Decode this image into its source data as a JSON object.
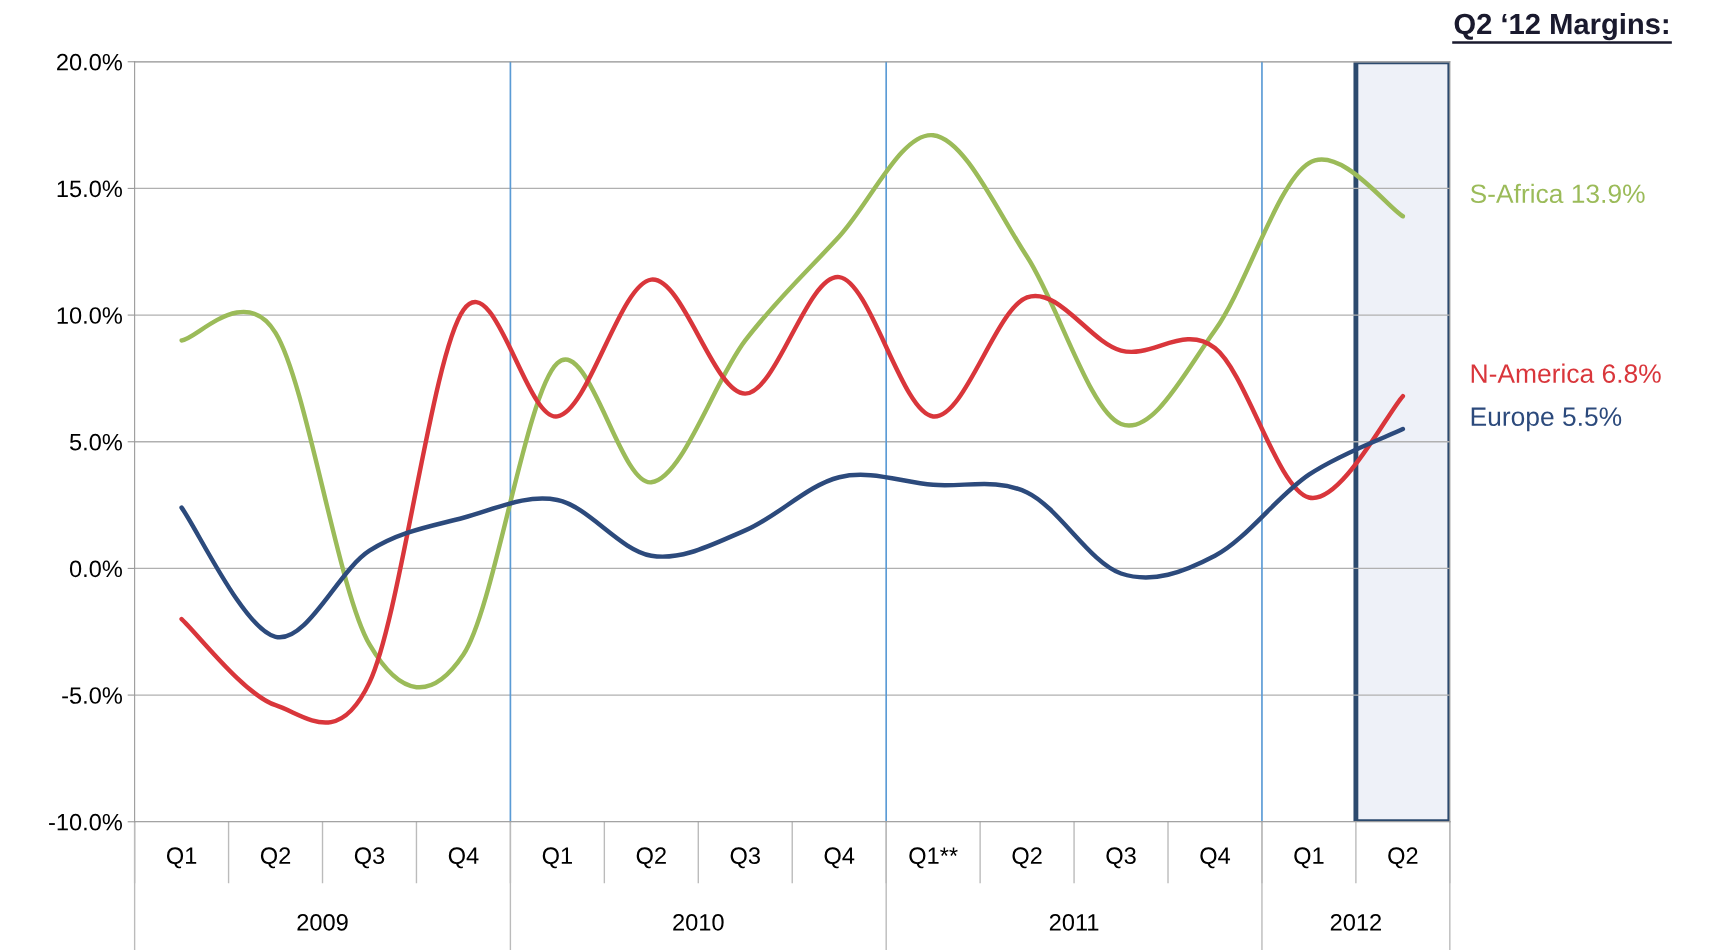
{
  "chart_data": {
    "type": "line",
    "title": "Q2 ‘12 Margins:",
    "categories": [
      "Q1",
      "Q2",
      "Q3",
      "Q4",
      "Q1",
      "Q2",
      "Q3",
      "Q4",
      "Q1**",
      "Q2",
      "Q3",
      "Q4",
      "Q1",
      "Q2"
    ],
    "series": [
      {
        "name": "S-Africa 13.9%",
        "color": "#9bbb59",
        "values": [
          9.0,
          9.3,
          -3.0,
          -3.4,
          8.1,
          3.4,
          9.0,
          13.1,
          17.1,
          12.3,
          5.7,
          9.4,
          16.0,
          13.9
        ]
      },
      {
        "name": "N-America 6.8%",
        "color": "#d9363b",
        "values": [
          -2.0,
          -5.4,
          -4.5,
          10.2,
          6.0,
          11.4,
          6.9,
          11.5,
          6.0,
          10.7,
          8.6,
          8.7,
          2.8,
          6.8
        ]
      },
      {
        "name": "Europe 5.5%",
        "color": "#2c4a7c",
        "values": [
          2.4,
          -2.7,
          0.7,
          2.0,
          2.7,
          0.5,
          1.5,
          3.6,
          3.3,
          3.0,
          -0.2,
          0.5,
          3.7,
          5.5
        ]
      }
    ],
    "ylim": [
      -10,
      20
    ],
    "yticks": [
      {
        "value": -10,
        "label": "-10.0%"
      },
      {
        "value": -5,
        "label": "-5.0%"
      },
      {
        "value": 0,
        "label": "0.0%"
      },
      {
        "value": 5,
        "label": "5.0%"
      },
      {
        "value": 10,
        "label": "10.0%"
      },
      {
        "value": 15,
        "label": "15.0%"
      },
      {
        "value": 20,
        "label": "20.0%"
      }
    ],
    "grid": "y",
    "legend": false,
    "marker": "none",
    "line_style": "solid",
    "annotations": [
      "2009",
      "2010",
      "2011",
      "2012"
    ]
  }
}
